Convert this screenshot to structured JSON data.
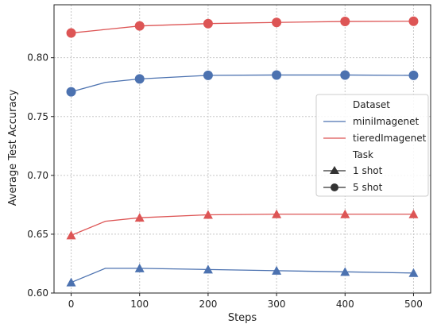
{
  "chart_data": {
    "type": "line",
    "xlabel": "Steps",
    "ylabel": "Average Test Accuracy",
    "xlim": [
      -25,
      525
    ],
    "ylim": [
      0.6,
      0.845
    ],
    "xticks": [
      0,
      100,
      200,
      300,
      400,
      500
    ],
    "xtick_labels": [
      "0",
      "100",
      "200",
      "300",
      "400",
      "500"
    ],
    "yticks": [
      0.6,
      0.65,
      0.7,
      0.75,
      0.8
    ],
    "ytick_labels": [
      "0.60",
      "0.65",
      "0.70",
      "0.75",
      "0.80"
    ],
    "grid": true,
    "legend_position": "center-right",
    "colors": {
      "miniImagenet": "#4c72b0",
      "tieredImagenet": "#dd5555"
    },
    "series": [
      {
        "name": "miniImagenet",
        "task": "1 shot",
        "x": [
          0,
          50,
          100,
          200,
          300,
          400,
          500
        ],
        "y": [
          0.609,
          0.621,
          0.621,
          0.62,
          0.619,
          0.618,
          0.617
        ],
        "marker_x": [
          0,
          100,
          200,
          300,
          400,
          500
        ]
      },
      {
        "name": "tieredImagenet",
        "task": "1 shot",
        "x": [
          0,
          50,
          100,
          200,
          300,
          400,
          500
        ],
        "y": [
          0.649,
          0.661,
          0.664,
          0.6665,
          0.667,
          0.667,
          0.667
        ],
        "marker_x": [
          0,
          100,
          200,
          300,
          400,
          500
        ]
      },
      {
        "name": "miniImagenet",
        "task": "5 shot",
        "x": [
          0,
          50,
          100,
          200,
          300,
          400,
          500
        ],
        "y": [
          0.771,
          0.779,
          0.782,
          0.785,
          0.7853,
          0.7853,
          0.785
        ],
        "marker_x": [
          0,
          100,
          200,
          300,
          400,
          500
        ]
      },
      {
        "name": "tieredImagenet",
        "task": "5 shot",
        "x": [
          0,
          50,
          100,
          200,
          300,
          400,
          500
        ],
        "y": [
          0.821,
          0.824,
          0.827,
          0.829,
          0.83,
          0.8308,
          0.831
        ],
        "marker_x": [
          0,
          100,
          200,
          300,
          400,
          500
        ]
      }
    ],
    "legend": {
      "dataset_title": "Dataset",
      "datasets": [
        {
          "name": "miniImagenet",
          "color": "#4c72b0"
        },
        {
          "name": "tieredImagenet",
          "color": "#dd5555"
        }
      ],
      "task_title": "Task",
      "tasks": [
        {
          "name": "1 shot",
          "marker": "triangle"
        },
        {
          "name": "5 shot",
          "marker": "circle"
        }
      ]
    }
  }
}
